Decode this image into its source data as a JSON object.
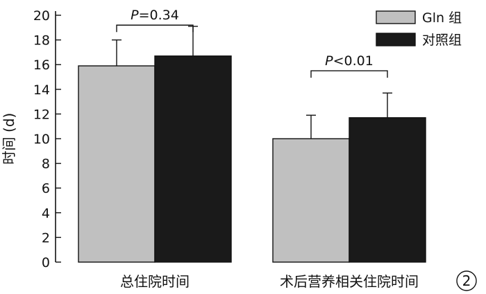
{
  "chart_data": {
    "type": "bar",
    "categories": [
      "总住院时间",
      "术后营养相关住院时间"
    ],
    "series": [
      {
        "name": "Gln 组",
        "values": [
          15.9,
          10.0
        ],
        "errors": [
          2.1,
          1.9
        ],
        "color": "#c0c0c0"
      },
      {
        "name": "对照组",
        "values": [
          16.7,
          11.7
        ],
        "errors": [
          2.4,
          2.0
        ],
        "color": "#1a1a1a"
      }
    ],
    "ylabel": "时间 (d)",
    "ylim": [
      0,
      20
    ],
    "yticks": [
      0,
      2,
      4,
      6,
      8,
      10,
      12,
      14,
      16,
      18,
      20
    ],
    "legend_position": "top-right",
    "grid": false,
    "annotations": [
      {
        "category_index": 0,
        "p_symbol": "P",
        "p_rest": "=0.34",
        "bracket_y": 19.2
      },
      {
        "category_index": 1,
        "p_symbol": "P",
        "p_rest": "<0.01",
        "bracket_y": 15.5
      }
    ],
    "panel_number": "2"
  }
}
